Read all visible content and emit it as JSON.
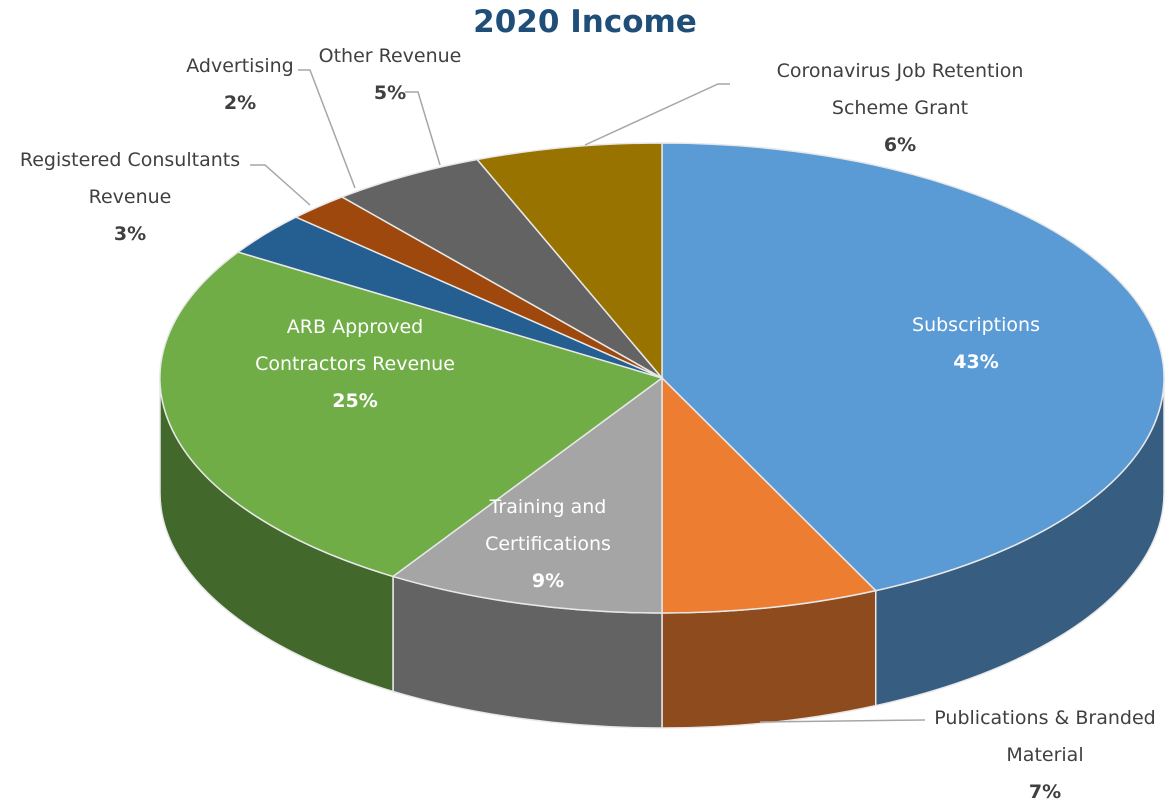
{
  "chart_data": {
    "type": "pie3d",
    "title": "2020 Income",
    "categories": [
      "Subscriptions",
      "Publications & Branded Material",
      "Training and Certifications",
      "ARB Approved Contractors Revenue",
      "Registered Consultants Revenue",
      "Advertising",
      "Other Revenue",
      "Coronavirus Job Retention Scheme Grant"
    ],
    "values": [
      43,
      7,
      9,
      25,
      3,
      2,
      5,
      6
    ],
    "value_labels": [
      "43%",
      "7%",
      "9%",
      "25%",
      "3%",
      "2%",
      "5%",
      "6%"
    ],
    "colors": [
      "#5b9bd5",
      "#ed7d31",
      "#a5a5a5",
      "#70ad47",
      "#255e91",
      "#9e480e",
      "#636363",
      "#997300"
    ]
  }
}
